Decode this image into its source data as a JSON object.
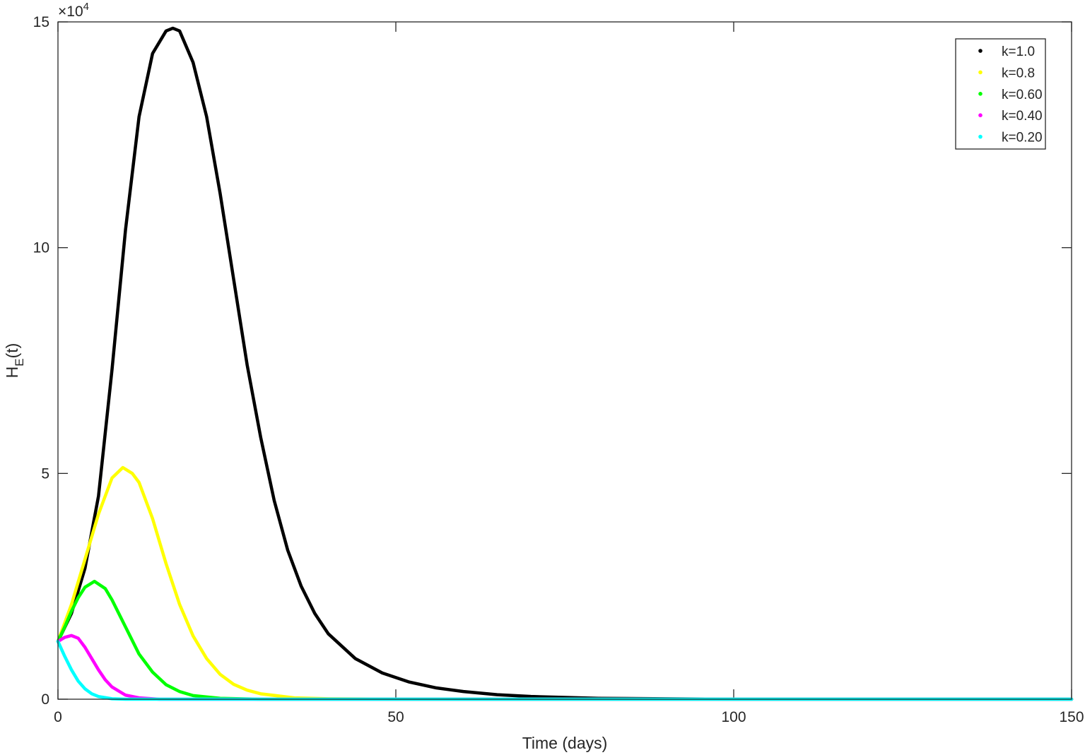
{
  "chart_data": {
    "type": "line",
    "xlabel": "Time (days)",
    "ylabel": [
      "H",
      "E",
      "(t)"
    ],
    "y_multiplier": [
      "×10",
      "4"
    ],
    "xlim": [
      0,
      150
    ],
    "xticks": [
      0,
      50,
      100,
      150
    ],
    "ylim": [
      0,
      15
    ],
    "yticks": [
      0,
      5,
      10,
      15
    ],
    "legend": "upper right",
    "series": [
      {
        "name": "k=1.0",
        "color": "#000000",
        "x": [
          0,
          2,
          4,
          6,
          8,
          10,
          12,
          14,
          16,
          17,
          18,
          20,
          22,
          24,
          26,
          28,
          30,
          32,
          34,
          36,
          38,
          40,
          44,
          48,
          52,
          56,
          60,
          65,
          70,
          80,
          90,
          100,
          150
        ],
        "values": [
          1.28,
          1.9,
          2.9,
          4.5,
          7.3,
          10.4,
          12.9,
          14.3,
          14.8,
          14.86,
          14.8,
          14.1,
          12.9,
          11.2,
          9.3,
          7.4,
          5.8,
          4.4,
          3.3,
          2.5,
          1.9,
          1.45,
          0.9,
          0.58,
          0.38,
          0.25,
          0.17,
          0.1,
          0.06,
          0.02,
          0.01,
          0,
          0
        ]
      },
      {
        "name": "k=0.8",
        "color": "#ffff00",
        "x": [
          0,
          2,
          4,
          6,
          8,
          9.6,
          11,
          12,
          14,
          16,
          18,
          20,
          22,
          24,
          26,
          28,
          30,
          35,
          40,
          50,
          150
        ],
        "values": [
          1.28,
          2.1,
          3.1,
          4.1,
          4.9,
          5.13,
          5.0,
          4.8,
          4.0,
          3.0,
          2.1,
          1.4,
          0.9,
          0.55,
          0.33,
          0.2,
          0.12,
          0.03,
          0.01,
          0,
          0
        ]
      },
      {
        "name": "k=0.60",
        "color": "#00ff00",
        "x": [
          0,
          1,
          2,
          3,
          4,
          5.4,
          7,
          8,
          10,
          12,
          14,
          16,
          18,
          20,
          24,
          30,
          150
        ],
        "values": [
          1.28,
          1.6,
          1.95,
          2.25,
          2.48,
          2.61,
          2.45,
          2.2,
          1.6,
          1.0,
          0.6,
          0.32,
          0.17,
          0.08,
          0.02,
          0,
          0
        ]
      },
      {
        "name": "k=0.40",
        "color": "#ff00ff",
        "x": [
          0,
          1,
          2,
          3,
          4,
          5,
          6,
          7,
          8,
          10,
          12,
          15,
          150
        ],
        "values": [
          1.28,
          1.37,
          1.41,
          1.35,
          1.15,
          0.9,
          0.65,
          0.43,
          0.27,
          0.09,
          0.03,
          0,
          0
        ]
      },
      {
        "name": "k=0.20",
        "color": "#00ffff",
        "x": [
          0,
          1,
          2,
          3,
          4,
          5,
          6,
          8,
          10,
          150
        ],
        "values": [
          1.28,
          0.95,
          0.65,
          0.4,
          0.23,
          0.12,
          0.06,
          0.01,
          0,
          0
        ]
      }
    ]
  }
}
